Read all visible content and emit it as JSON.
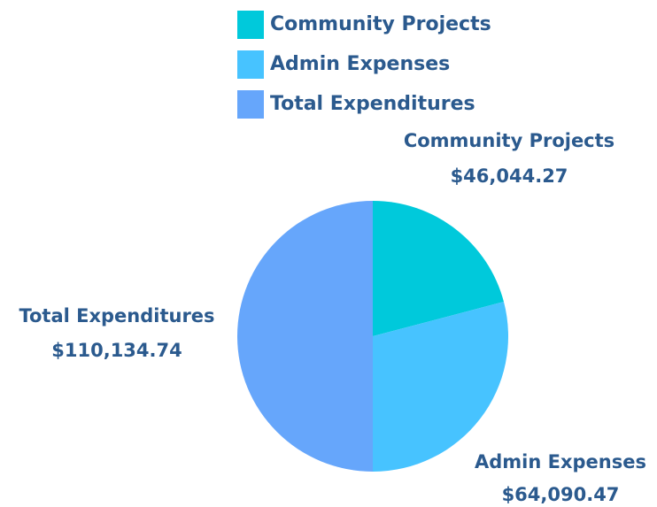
{
  "chart_data": {
    "type": "pie",
    "categories": [
      "Community Projects",
      "Admin Expenses",
      "Total Expenditures"
    ],
    "values": [
      46044.27,
      64090.47,
      110134.74
    ],
    "value_labels": [
      "$46,044.27",
      "$64,090.47",
      "$110,134.74"
    ],
    "colors": [
      "#00c9db",
      "#47c3ff",
      "#66a6fb"
    ],
    "legend": "top"
  }
}
